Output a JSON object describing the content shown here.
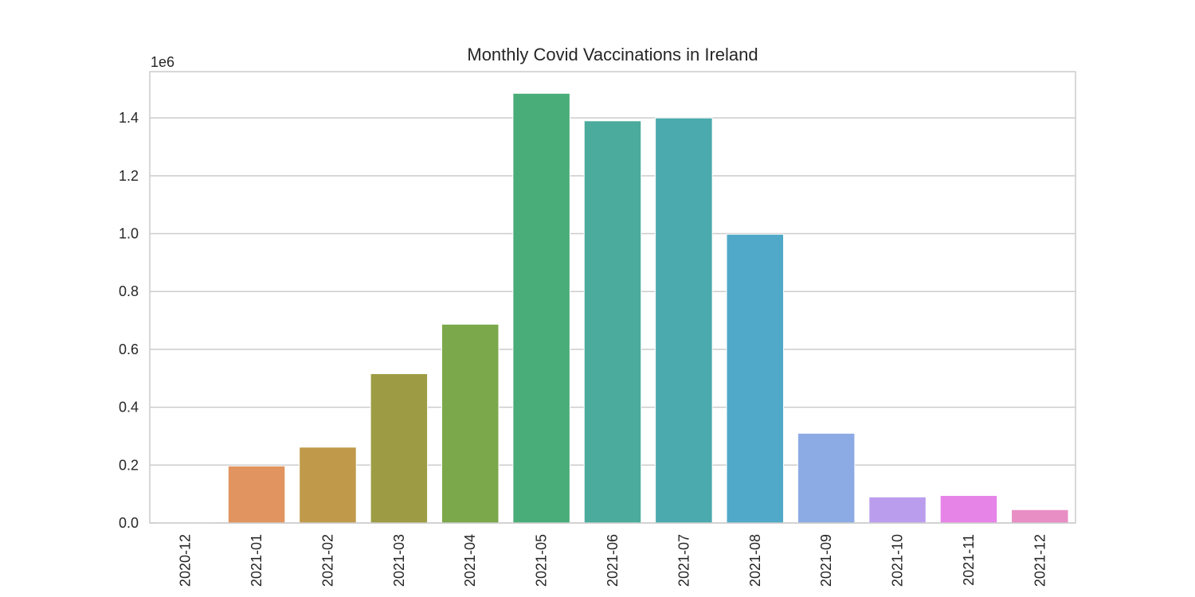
{
  "chart_data": {
    "type": "bar",
    "title": "Monthly Covid Vaccinations in Ireland",
    "xlabel": "",
    "ylabel": "",
    "y_offset_label": "1e6",
    "categories": [
      "2020-12",
      "2021-01",
      "2021-02",
      "2021-03",
      "2021-04",
      "2021-05",
      "2021-06",
      "2021-07",
      "2021-08",
      "2021-09",
      "2021-10",
      "2021-11",
      "2021-12"
    ],
    "values": [
      2000,
      197000,
      262000,
      516000,
      687000,
      1485000,
      1390000,
      1400000,
      998000,
      310000,
      90000,
      95000,
      46000
    ],
    "colors": [
      "#3274a1",
      "#e1945f",
      "#c0994a",
      "#9d9c45",
      "#7aa84b",
      "#48ad78",
      "#4bab9c",
      "#4aaaae",
      "#50a9c8",
      "#8cabe5",
      "#bb9ded",
      "#e684e8",
      "#e88ec4"
    ],
    "ylim": [
      0,
      1560000
    ],
    "yticks": [
      0,
      200000,
      400000,
      600000,
      800000,
      1000000,
      1200000,
      1400000
    ],
    "ytick_labels": [
      "0.0",
      "0.2",
      "0.4",
      "0.6",
      "0.8",
      "1.0",
      "1.2",
      "1.4"
    ],
    "grid": true,
    "legend": "none"
  }
}
